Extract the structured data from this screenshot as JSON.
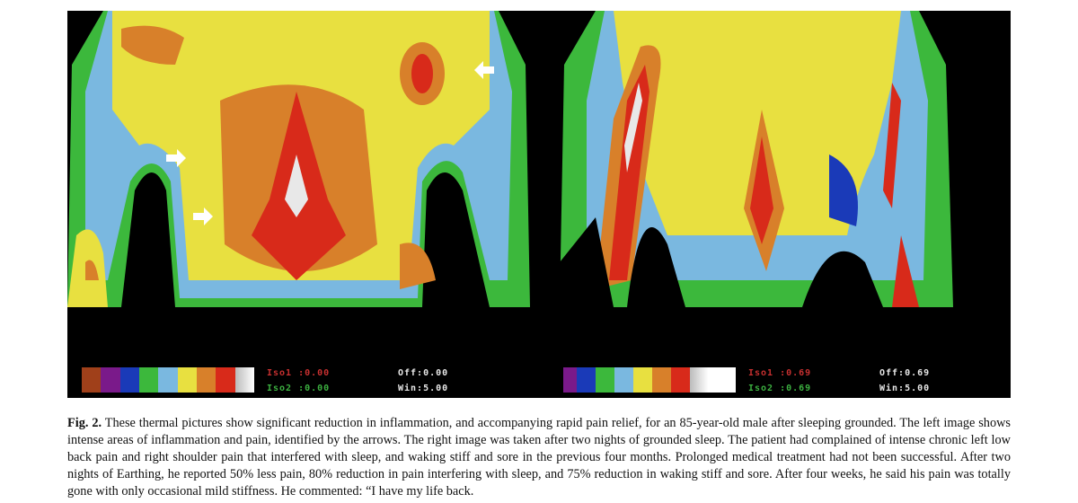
{
  "left_panel": {
    "scale_colors": [
      "#a0401a",
      "#7a1a8a",
      "#1a3ab8",
      "#3cb83c",
      "#7ab8e0",
      "#e8e040",
      "#d8802a",
      "#d82a1a",
      "#e8e8e8"
    ],
    "iso1": "Iso1 :0.00",
    "iso2": "Iso2 :0.00",
    "off": "Off:0.00",
    "win": "Win:5.00"
  },
  "right_panel": {
    "scale_colors": [
      "#7a1a8a",
      "#1a3ab8",
      "#3cb83c",
      "#7ab8e0",
      "#e8e040",
      "#d8802a",
      "#d82a1a",
      "#e8e8e8",
      "#ffffff"
    ],
    "iso1": "Iso1 :0.69",
    "iso2": "Iso2 :0.69",
    "off": "Off:0.69",
    "win": "Win:5.00"
  },
  "caption": {
    "label": "Fig. 2.",
    "text": "These thermal pictures show significant reduction in inflammation, and accompanying rapid pain relief, for an 85-year-old male after sleeping grounded. The left image shows intense areas of inflammation and pain, identified by the arrows. The right image was taken after two nights of grounded sleep. The patient had complained of intense chronic left low back pain and right shoulder pain that interfered with sleep, and waking stiff and sore in the previous four months. Prolonged medical treatment had not been successful. After two nights of Earthing, he reported 50% less pain, 80% reduction in pain interfering with sleep, and 75% reduction in waking stiff and sore. After four weeks, he said his pain was totally gone with only occasional mild stiffness. He commented: “I have my life back."
  }
}
